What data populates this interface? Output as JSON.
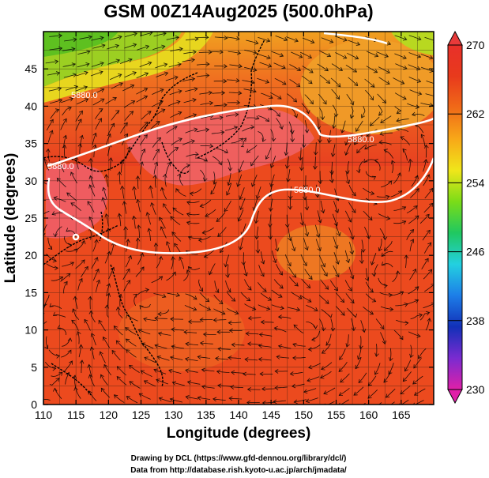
{
  "title": "GSM 00Z14Aug2025 (500.0hPa)",
  "xlabel": "Longitude (degrees)",
  "ylabel": "Latitude  (degrees)",
  "x_ticks": [
    "110",
    "115",
    "120",
    "125",
    "130",
    "135",
    "140",
    "145",
    "150",
    "155",
    "160",
    "165"
  ],
  "y_ticks": [
    "0",
    "5",
    "10",
    "15",
    "20",
    "25",
    "30",
    "35",
    "40",
    "45"
  ],
  "colorbar": {
    "ticks": [
      "230",
      "238",
      "246",
      "254",
      "262",
      "270"
    ],
    "min": 230,
    "max": 270,
    "stops": [
      "#e020a8",
      "#7a2bd0",
      "#1230b8",
      "#1d7ee8",
      "#23d0e0",
      "#20c860",
      "#7adc18",
      "#f0e61a",
      "#f8a818",
      "#f06a18",
      "#e83a1c",
      "#e8302a"
    ]
  },
  "contour_labels": [
    "5880.0",
    "5880.0",
    "5880.0",
    "5880.0"
  ],
  "credits": {
    "line1": "Drawing by DCL (https://www.gfd-dennou.org/library/dcl/)",
    "line2": "Data from http://database.rish.kyoto-u.ac.jp/arch/jmadata/"
  },
  "chart_data": {
    "type": "heatmap",
    "title": "GSM 00Z14Aug2025 (500.0hPa)",
    "xlabel": "Longitude (degrees)",
    "ylabel": "Latitude  (degrees)",
    "xlim": [
      110,
      170
    ],
    "ylim": [
      0,
      50
    ],
    "color_range": [
      230,
      270
    ],
    "contour_value": 5880.0,
    "overlay": "wind streamlines, coastlines, lat-lon grid"
  }
}
